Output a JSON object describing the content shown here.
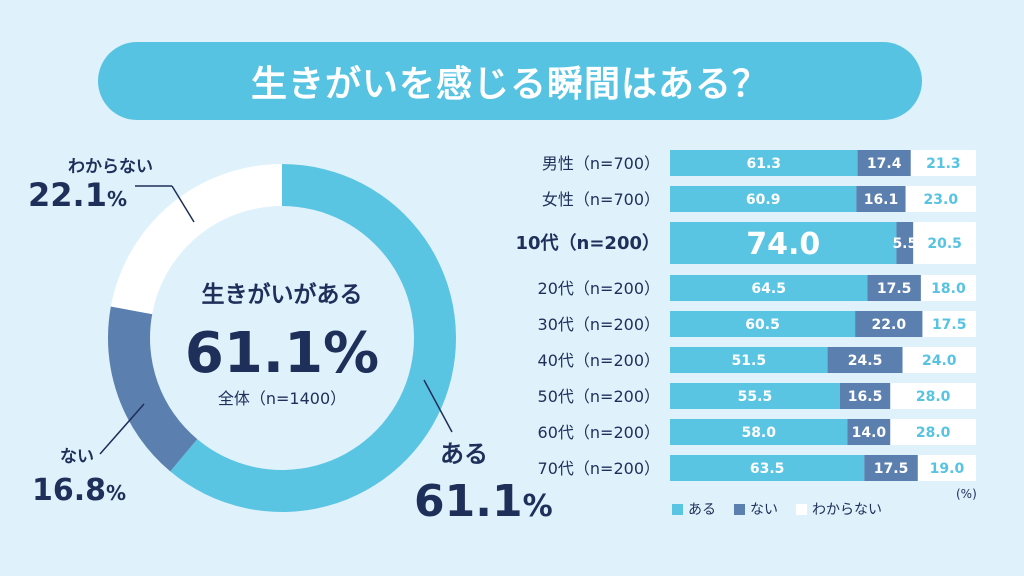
{
  "title": "生きがいを感じる瞬間はある？",
  "colors": {
    "background": "#dff1fb",
    "aru": "#5ac4e3",
    "nai": "#5b7fae",
    "wakaranai": "#ffffff",
    "navy": "#1e2f5a",
    "bar_value_light": "#ffffff",
    "bar_value_outside": "#57c3e3"
  },
  "donut": {
    "center_label": "生きがいがある",
    "center_value": "61.1%",
    "center_caption": "全体（n=1400）",
    "label_aru": "ある",
    "label_nai": "ない",
    "label_wakaranai": "わからない"
  },
  "legend": {
    "aru": "ある",
    "nai": "ない",
    "wakaranai": "わからない",
    "unit": "(%)"
  },
  "chart_data": [
    {
      "type": "pie",
      "categories": [
        "ある",
        "ない",
        "わからない"
      ],
      "values": [
        61.1,
        16.8,
        22.1
      ],
      "display_values": [
        "61.1",
        "16.8",
        "22.1"
      ],
      "unit": "%",
      "colors": [
        "#5ac4e3",
        "#5b7fae",
        "#ffffff"
      ]
    },
    {
      "type": "bar",
      "orientation": "horizontal",
      "stacked": true,
      "unit": "(%)",
      "categories": [
        "男性（n=700）",
        "女性（n=700）",
        "10代（n=200）",
        "20代（n=200）",
        "30代（n=200）",
        "40代（n=200）",
        "50代（n=200）",
        "60代（n=200）",
        "70代（n=200）"
      ],
      "highlight_category": "10代（n=200）",
      "series": [
        {
          "name": "ある",
          "values": [
            61.3,
            60.9,
            74.0,
            64.5,
            60.5,
            51.5,
            55.5,
            58.0,
            63.5
          ],
          "labels": [
            "61.3",
            "60.9",
            "74.0",
            "64.5",
            "60.5",
            "51.5",
            "55.5",
            "58.0",
            "63.5"
          ]
        },
        {
          "name": "ない",
          "values": [
            17.4,
            16.1,
            5.5,
            17.5,
            22.0,
            24.5,
            16.5,
            14.0,
            17.5
          ],
          "labels": [
            "17.4",
            "16.1",
            "5.5",
            "17.5",
            "22.0",
            "24.5",
            "16.5",
            "14.0",
            "17.5"
          ]
        },
        {
          "name": "わからない",
          "values": [
            21.3,
            23.0,
            20.5,
            18.0,
            17.5,
            24.0,
            28.0,
            28.0,
            19.0
          ],
          "labels": [
            "21.3",
            "23.0",
            "20.5",
            "18.0",
            "17.5",
            "24.0",
            "28.0",
            "28.0",
            "19.0"
          ]
        }
      ],
      "xlim": [
        0,
        100
      ]
    }
  ]
}
